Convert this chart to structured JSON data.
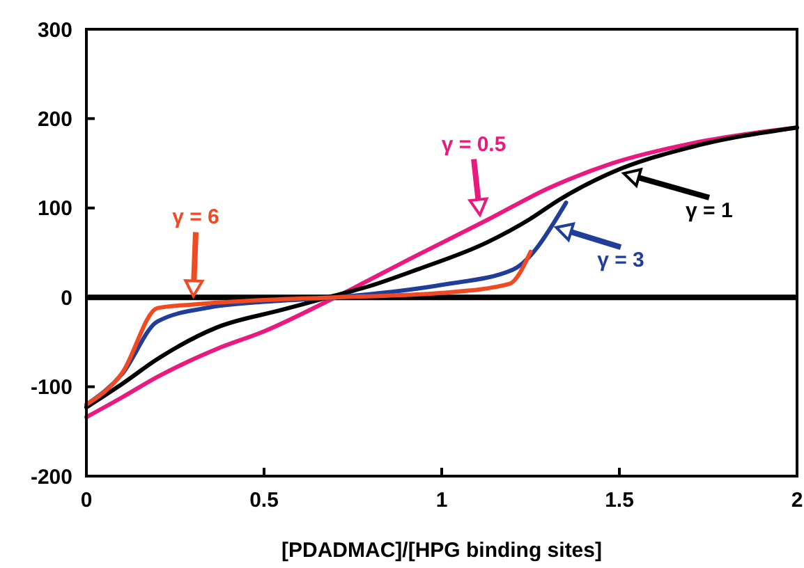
{
  "chart_data": {
    "type": "line",
    "xlabel": "[PDADMAC]/[HPG binding sites]",
    "xlim": [
      0,
      2
    ],
    "xticks": [
      0,
      0.5,
      1,
      1.5,
      2
    ],
    "ylim": [
      -200,
      300
    ],
    "yticks": [
      -200,
      -100,
      0,
      100,
      200,
      300
    ],
    "grid": false,
    "marker": "none",
    "line_style": "solid",
    "annotations": [
      "γ = 0.5",
      "γ = 1",
      "γ = 3",
      "γ = 6"
    ],
    "ref_lines": [
      {
        "axis": "y",
        "value": 0,
        "color": "#000000"
      }
    ],
    "series": [
      {
        "color": "#e8197f",
        "x": [
          0,
          0.1,
          0.2,
          0.365,
          0.5,
          0.7,
          0.93,
          1.13,
          1.3,
          1.48,
          1.7,
          2
        ],
        "values": [
          -134,
          -112,
          -89,
          -58,
          -38,
          0,
          47,
          87,
          122,
          150,
          172,
          190
        ]
      },
      {
        "color": "#000000",
        "x": [
          0,
          0.1,
          0.2,
          0.365,
          0.55,
          0.68,
          0.8,
          0.93,
          1.13,
          1.25,
          1.33,
          1.48,
          1.7,
          2
        ],
        "values": [
          -123,
          -97,
          -69,
          -34,
          -14,
          0,
          13,
          31,
          62,
          88,
          109,
          140,
          168,
          190
        ]
      },
      {
        "color": "#1f3d99",
        "x": [
          0,
          0.1,
          0.2,
          0.35,
          0.5,
          0.7,
          1.0,
          1.2,
          1.35
        ],
        "values": [
          -120,
          -86,
          -27,
          -11,
          -5,
          0,
          14,
          31,
          106
        ]
      },
      {
        "color": "#f04a23",
        "x": [
          0,
          0.1,
          0.2,
          0.3,
          0.5,
          0.7,
          1.0,
          1.19,
          1.25
        ],
        "values": [
          -120,
          -85,
          -12,
          -8,
          -3,
          0,
          5,
          15,
          51
        ]
      }
    ]
  }
}
